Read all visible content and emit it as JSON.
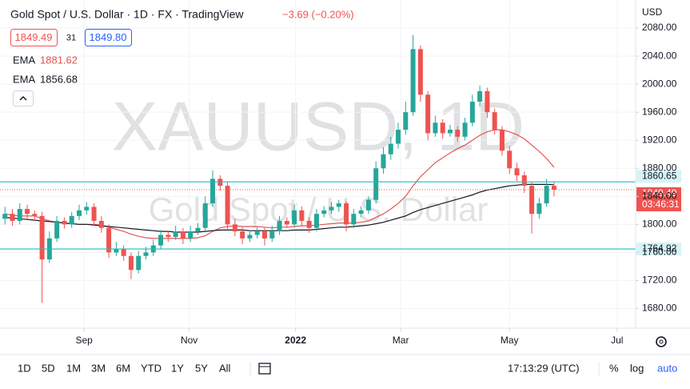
{
  "header": {
    "title": "Gold Spot / U.S. Dollar · 1D · FX · TradingView",
    "change": "−3.69 (−0.20%)",
    "sell": "1849.49",
    "spread": 31,
    "buy": "1849.80"
  },
  "toolbar": {
    "ranges": [
      "1D",
      "5D",
      "1M",
      "3M",
      "6M",
      "YTD",
      "1Y",
      "5Y",
      "All"
    ],
    "time": "17:13:29 (UTC)",
    "percent": "%",
    "log": "log",
    "auto": "auto"
  },
  "chart_data": {
    "type": "candlestick",
    "watermark": "XAUUSD, 1D",
    "watermark_subtitle": "Gold Spot / U.S. Dollar",
    "currency": "USD",
    "countdown": "03:46:31",
    "up_color": "#26a69a",
    "down_color": "#ef5350",
    "grid": true,
    "xlim": [
      -2,
      255
    ],
    "xticks": [
      {
        "value": 32,
        "label": "Sep"
      },
      {
        "value": 74.5,
        "label": "Nov"
      },
      {
        "value": 117.5,
        "label": "2022"
      },
      {
        "value": 160,
        "label": "Mar"
      },
      {
        "value": 204,
        "label": "May"
      },
      {
        "value": 247.5,
        "label": "Jul"
      }
    ],
    "ylim": [
      1652,
      2120
    ],
    "yticks": [
      {
        "value": 1680,
        "label": "1680.00"
      },
      {
        "value": 1720,
        "label": "1720.00"
      },
      {
        "value": 1760,
        "label": "1760.00"
      },
      {
        "value": 1800,
        "label": "1800.00"
      },
      {
        "value": 1840,
        "label": "1840.00"
      },
      {
        "value": 1880,
        "label": "1880.00"
      },
      {
        "value": 1920,
        "label": "1920.00"
      },
      {
        "value": 1960,
        "label": "1960.00"
      },
      {
        "value": 2000,
        "label": "2000.00"
      },
      {
        "value": 2040,
        "label": "2040.00"
      },
      {
        "value": 2080,
        "label": "2080.00"
      }
    ],
    "x": [
      0,
      3,
      6,
      9,
      12,
      15,
      18,
      21,
      24,
      27,
      30,
      33,
      36,
      39,
      42,
      45,
      48,
      51,
      54,
      57,
      60,
      63,
      66,
      69,
      72,
      75,
      78,
      81,
      84,
      87,
      90,
      93,
      96,
      99,
      102,
      105,
      108,
      111,
      114,
      117,
      120,
      123,
      126,
      129,
      132,
      135,
      138,
      141,
      144,
      147,
      150,
      153,
      156,
      159,
      162,
      165,
      168,
      171,
      174,
      177,
      180,
      183,
      186,
      189,
      192,
      195,
      198,
      201,
      204,
      207,
      210,
      213,
      216,
      219,
      222
    ],
    "open": [
      1808,
      1815,
      1805,
      1822,
      1815,
      1812,
      1750,
      1780,
      1805,
      1800,
      1812,
      1820,
      1825,
      1805,
      1795,
      1760,
      1765,
      1755,
      1735,
      1755,
      1760,
      1770,
      1785,
      1782,
      1790,
      1780,
      1790,
      1795,
      1830,
      1865,
      1855,
      1800,
      1790,
      1780,
      1785,
      1790,
      1780,
      1790,
      1805,
      1800,
      1820,
      1805,
      1795,
      1815,
      1820,
      1825,
      1830,
      1800,
      1815,
      1820,
      1835,
      1880,
      1900,
      1915,
      1935,
      1960,
      2050,
      1985,
      1930,
      1945,
      1930,
      1935,
      1925,
      1945,
      1975,
      1990,
      1960,
      1935,
      1905,
      1880,
      1870,
      1855,
      1815,
      1830,
      1855
    ],
    "high": [
      1825,
      1822,
      1830,
      1828,
      1820,
      1818,
      1790,
      1812,
      1810,
      1818,
      1828,
      1832,
      1830,
      1812,
      1800,
      1775,
      1770,
      1760,
      1762,
      1768,
      1778,
      1792,
      1790,
      1798,
      1795,
      1798,
      1802,
      1840,
      1877,
      1870,
      1860,
      1808,
      1796,
      1792,
      1796,
      1795,
      1798,
      1812,
      1810,
      1828,
      1826,
      1810,
      1822,
      1826,
      1832,
      1835,
      1833,
      1822,
      1826,
      1840,
      1890,
      1910,
      1925,
      1945,
      1975,
      2070,
      2055,
      1990,
      1955,
      1950,
      1942,
      1940,
      1952,
      1985,
      1998,
      1995,
      1965,
      1940,
      1912,
      1888,
      1875,
      1860,
      1838,
      1865,
      1860
    ],
    "low": [
      1800,
      1798,
      1800,
      1808,
      1805,
      1688,
      1745,
      1775,
      1794,
      1795,
      1806,
      1814,
      1798,
      1788,
      1752,
      1755,
      1748,
      1722,
      1730,
      1750,
      1755,
      1765,
      1775,
      1778,
      1772,
      1775,
      1785,
      1790,
      1825,
      1848,
      1792,
      1783,
      1772,
      1775,
      1780,
      1770,
      1775,
      1785,
      1795,
      1795,
      1798,
      1788,
      1790,
      1810,
      1815,
      1818,
      1790,
      1795,
      1810,
      1815,
      1830,
      1872,
      1892,
      1908,
      1928,
      1955,
      1975,
      1920,
      1925,
      1922,
      1925,
      1918,
      1920,
      1940,
      1968,
      1952,
      1928,
      1898,
      1872,
      1862,
      1845,
      1787,
      1808,
      1825,
      1840
    ],
    "close": [
      1815,
      1805,
      1822,
      1815,
      1812,
      1750,
      1780,
      1805,
      1800,
      1812,
      1820,
      1825,
      1805,
      1795,
      1760,
      1765,
      1755,
      1735,
      1755,
      1760,
      1770,
      1785,
      1782,
      1790,
      1780,
      1790,
      1795,
      1830,
      1865,
      1855,
      1800,
      1790,
      1780,
      1785,
      1790,
      1780,
      1790,
      1805,
      1800,
      1820,
      1805,
      1795,
      1815,
      1820,
      1825,
      1830,
      1800,
      1815,
      1820,
      1835,
      1880,
      1900,
      1915,
      1935,
      1960,
      2050,
      1985,
      1930,
      1945,
      1930,
      1935,
      1925,
      1945,
      1975,
      1990,
      1960,
      1935,
      1905,
      1880,
      1870,
      1855,
      1815,
      1830,
      1855,
      1849.49
    ],
    "lines": [
      {
        "name": "EMA",
        "color": "#e05555",
        "values": [
          1815,
          1813,
          1812,
          1812,
          1812,
          1808,
          1805,
          1803,
          1802,
          1801,
          1800,
          1800,
          1800,
          1799,
          1796,
          1793,
          1790,
          1786,
          1783,
          1781,
          1780,
          1780,
          1780,
          1780,
          1780,
          1780,
          1781,
          1784,
          1790,
          1795,
          1797,
          1798,
          1797,
          1797,
          1797,
          1796,
          1795,
          1796,
          1796,
          1797,
          1798,
          1798,
          1799,
          1800,
          1801,
          1802,
          1802,
          1802,
          1803,
          1805,
          1810,
          1815,
          1822,
          1830,
          1840,
          1855,
          1868,
          1878,
          1888,
          1895,
          1902,
          1908,
          1913,
          1920,
          1927,
          1932,
          1935,
          1935,
          1932,
          1928,
          1922,
          1913,
          1904,
          1894,
          1881.62
        ]
      },
      {
        "name": "EMA",
        "color": "#131722",
        "values": [
          1810,
          1809,
          1808,
          1807,
          1806,
          1805,
          1804,
          1803,
          1802,
          1801,
          1800,
          1800,
          1799,
          1798,
          1797,
          1796,
          1795,
          1794,
          1793,
          1792,
          1791,
          1790,
          1790,
          1789,
          1789,
          1789,
          1789,
          1790,
          1791,
          1792,
          1792,
          1792,
          1792,
          1791,
          1791,
          1791,
          1791,
          1791,
          1791,
          1792,
          1792,
          1792,
          1793,
          1794,
          1795,
          1796,
          1796,
          1797,
          1798,
          1799,
          1801,
          1803,
          1806,
          1809,
          1812,
          1817,
          1821,
          1824,
          1827,
          1830,
          1833,
          1836,
          1839,
          1842,
          1846,
          1849,
          1851,
          1853,
          1855,
          1856,
          1857,
          1857,
          1857,
          1857,
          1856.68
        ]
      }
    ],
    "levels": [
      {
        "value": 1860.65,
        "color": "#22b8c8"
      },
      {
        "value": 1764.92,
        "color": "#22b8c8"
      }
    ]
  }
}
